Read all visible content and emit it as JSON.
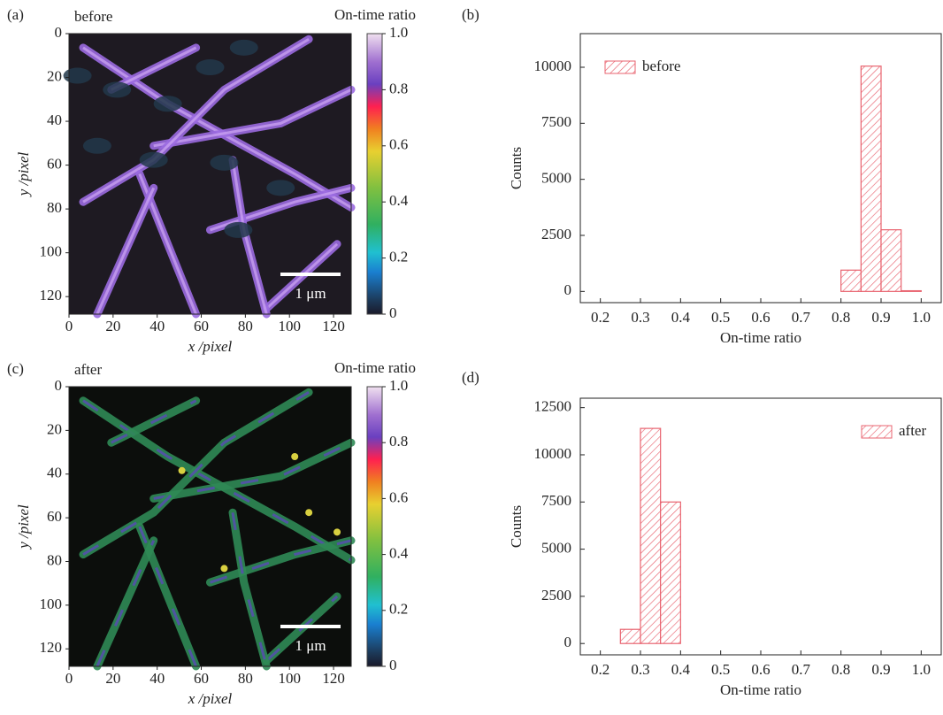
{
  "chart_data": [
    {
      "type": "image",
      "panel_label": "(a)",
      "annotation": "before",
      "colorbar_label": "On-time ratio",
      "xlabel": "x /pixel",
      "ylabel": "y /pixel",
      "xlim": [
        0,
        128
      ],
      "ylim": [
        0,
        128
      ],
      "invert_y": true,
      "xticks": [
        0,
        20,
        40,
        60,
        80,
        100,
        120
      ],
      "yticks": [
        0,
        20,
        40,
        60,
        80,
        100,
        120
      ],
      "colorbar_lim": [
        0,
        1
      ],
      "colorbar_ticks": [
        0,
        0.2,
        0.4,
        0.6,
        0.8,
        {
          "value": 1,
          "label": "1.0"
        }
      ],
      "scale_bar_label": "1 μm"
    },
    {
      "type": "histogram",
      "panel_label": "(b)",
      "xlabel": "On-time ratio",
      "ylabel": "Counts",
      "bins": [
        0.8,
        0.85,
        0.9,
        0.95,
        1.0
      ],
      "series": [
        {
          "name": "before",
          "color": "#e8636f",
          "values": [
            950,
            10050,
            2750,
            30
          ]
        }
      ],
      "xlim": [
        0.15,
        1.05
      ],
      "ylim": [
        -500,
        11500
      ],
      "xticks": [
        0.2,
        0.3,
        0.4,
        0.5,
        0.6,
        0.7,
        0.8,
        0.9,
        {
          "value": 1,
          "label": "1.0"
        }
      ],
      "yticks": [
        0,
        2500,
        5000,
        7500,
        10000
      ],
      "legend": "upper left"
    },
    {
      "type": "image",
      "panel_label": "(c)",
      "annotation": "after",
      "colorbar_label": "On-time ratio",
      "xlabel": "x /pixel",
      "ylabel": "y /pixel",
      "xlim": [
        0,
        128
      ],
      "ylim": [
        0,
        128
      ],
      "invert_y": true,
      "xticks": [
        0,
        20,
        40,
        60,
        80,
        100,
        120
      ],
      "yticks": [
        0,
        20,
        40,
        60,
        80,
        100,
        120
      ],
      "colorbar_lim": [
        0,
        1
      ],
      "colorbar_ticks": [
        0,
        0.2,
        0.4,
        0.6,
        0.8,
        {
          "value": 1,
          "label": "1.0"
        }
      ],
      "scale_bar_label": "1 μm"
    },
    {
      "type": "histogram",
      "panel_label": "(d)",
      "xlabel": "On-time ratio",
      "ylabel": "Counts",
      "bins": [
        0.25,
        0.3,
        0.35,
        0.4
      ],
      "series": [
        {
          "name": "after",
          "color": "#e8636f",
          "values": [
            750,
            11400,
            7500
          ]
        }
      ],
      "xlim": [
        0.15,
        1.05
      ],
      "ylim": [
        -600,
        13000
      ],
      "xticks": [
        0.2,
        0.3,
        0.4,
        0.5,
        0.6,
        0.7,
        0.8,
        0.9,
        {
          "value": 1,
          "label": "1.0"
        }
      ],
      "yticks": [
        0,
        2500,
        5000,
        7500,
        10000,
        12500
      ],
      "legend": "upper right"
    }
  ]
}
